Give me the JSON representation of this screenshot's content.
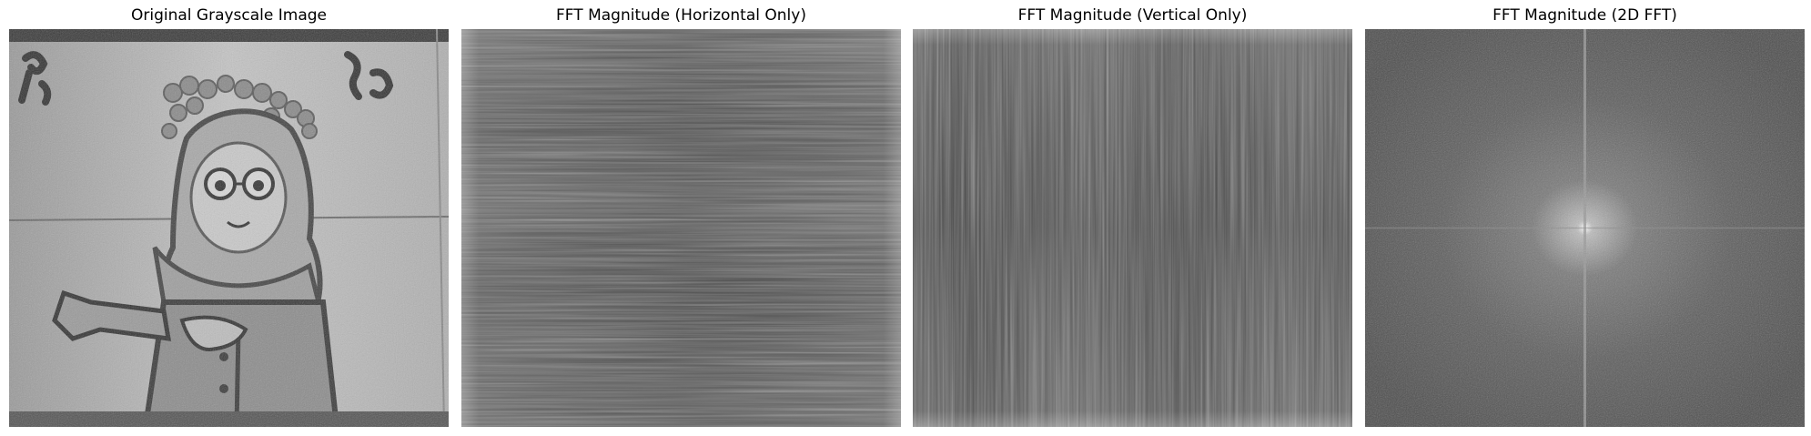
{
  "figure": {
    "panels": [
      {
        "title": "Original Grayscale Image"
      },
      {
        "title": "FFT Magnitude (Horizontal Only)"
      },
      {
        "title": "FFT Magnitude (Vertical Only)"
      },
      {
        "title": "FFT Magnitude (2D FFT)"
      }
    ]
  }
}
